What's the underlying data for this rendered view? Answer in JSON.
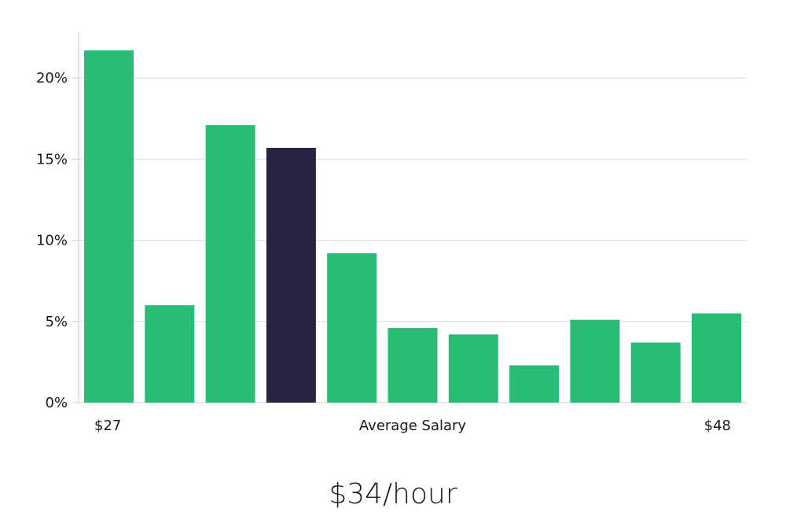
{
  "chart_data": {
    "type": "bar",
    "xlabel": "Average Salary",
    "x_min_label": "$27",
    "x_max_label": "$48",
    "ylim": [
      0,
      23
    ],
    "yticks": [
      0,
      5,
      10,
      15,
      20
    ],
    "ytick_labels": [
      "0%",
      "5%",
      "10%",
      "15%",
      "20%"
    ],
    "values": [
      21.7,
      6.0,
      17.1,
      15.7,
      9.2,
      4.6,
      4.2,
      2.3,
      5.1,
      3.7,
      5.5
    ],
    "highlight_index": 3,
    "grid": true,
    "colors": {
      "bar": "#2abb77",
      "highlight": "#272444",
      "grid": "#dddddd",
      "axis": "#cccccc"
    }
  },
  "summary": {
    "value_text": "$34/hour"
  }
}
